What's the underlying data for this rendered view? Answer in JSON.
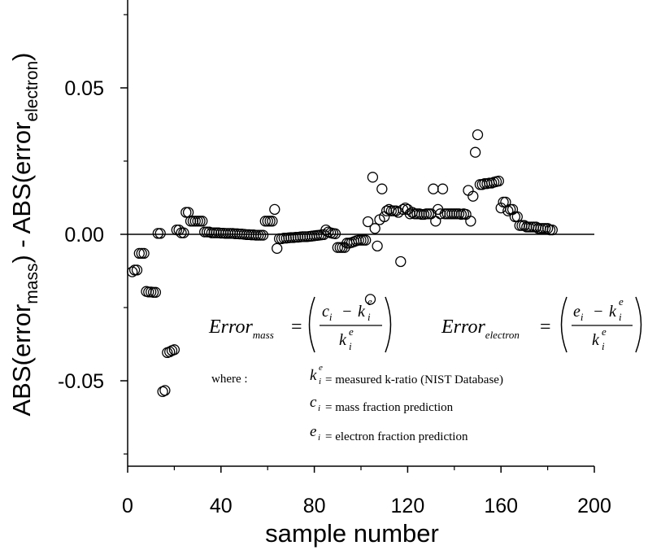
{
  "chart_data": {
    "type": "scatter",
    "xlabel": "sample number",
    "ylabel": {
      "prefix": "ABS(error",
      "sub1": "mass",
      "middle": ") - ABS(error",
      "sub2": "electron",
      "suffix": ")"
    },
    "xlim": [
      0,
      200
    ],
    "ylim": [
      -0.08,
      0.08
    ],
    "xticks": [
      0,
      40,
      80,
      120,
      160,
      200
    ],
    "xtick_labels": [
      "0",
      "40",
      "80",
      "120",
      "160",
      "200"
    ],
    "yticks": [
      -0.05,
      0.0,
      0.05
    ],
    "ytick_labels": [
      "-0.05",
      "0.00",
      "0.05"
    ],
    "zero_line": true,
    "marker": "open-circle",
    "series": [
      {
        "points": [
          [
            2,
            -0.0128
          ],
          [
            3,
            -0.0122
          ],
          [
            4,
            -0.0122
          ],
          [
            5,
            -0.0065
          ],
          [
            6,
            -0.0065
          ],
          [
            7,
            -0.0065
          ],
          [
            8,
            -0.0195
          ],
          [
            9,
            -0.0197
          ],
          [
            10,
            -0.0197
          ],
          [
            11,
            -0.0198
          ],
          [
            12,
            -0.0198
          ],
          [
            13,
            0.0003
          ],
          [
            14,
            0.0003
          ],
          [
            15,
            -0.0537
          ],
          [
            16,
            -0.0533
          ],
          [
            17,
            -0.0404
          ],
          [
            18,
            -0.0401
          ],
          [
            19,
            -0.0397
          ],
          [
            20,
            -0.0394
          ],
          [
            21,
            0.0015
          ],
          [
            22,
            0.0015
          ],
          [
            23,
            0.0005
          ],
          [
            24,
            0.0005
          ],
          [
            25,
            0.0075
          ],
          [
            26,
            0.0075
          ],
          [
            27,
            0.0045
          ],
          [
            28,
            0.0045
          ],
          [
            29,
            0.0045
          ],
          [
            30,
            0.0045
          ],
          [
            31,
            0.0045
          ],
          [
            32,
            0.0045
          ],
          [
            33,
            0.0008
          ],
          [
            34,
            0.0008
          ],
          [
            35,
            0.0008
          ],
          [
            36,
            0.0005
          ],
          [
            37,
            0.0005
          ],
          [
            38,
            0.0005
          ],
          [
            39,
            0.0005
          ],
          [
            40,
            0.0004
          ],
          [
            41,
            0.0004
          ],
          [
            42,
            0.0003
          ],
          [
            43,
            0.0003
          ],
          [
            44,
            0.0003
          ],
          [
            45,
            0.0003
          ],
          [
            46,
            0.0002
          ],
          [
            47,
            0.0002
          ],
          [
            48,
            0.0001
          ],
          [
            49,
            0.0001
          ],
          [
            50,
            0.0
          ],
          [
            51,
            -0.0001
          ],
          [
            52,
            -0.0001
          ],
          [
            53,
            -0.0002
          ],
          [
            54,
            -0.0002
          ],
          [
            55,
            -0.0003
          ],
          [
            56,
            -0.0003
          ],
          [
            57,
            -0.0003
          ],
          [
            58,
            -0.0003
          ],
          [
            59,
            0.0045
          ],
          [
            60,
            0.0045
          ],
          [
            61,
            0.0045
          ],
          [
            62,
            0.0045
          ],
          [
            63,
            0.0085
          ],
          [
            64,
            -0.0048
          ],
          [
            65,
            -0.0015
          ],
          [
            66,
            -0.0015
          ],
          [
            67,
            -0.0013
          ],
          [
            68,
            -0.0013
          ],
          [
            69,
            -0.0012
          ],
          [
            70,
            -0.0011
          ],
          [
            71,
            -0.0011
          ],
          [
            72,
            -0.001
          ],
          [
            73,
            -0.001
          ],
          [
            74,
            -0.0009
          ],
          [
            75,
            -0.0008
          ],
          [
            76,
            -0.0008
          ],
          [
            77,
            -0.0008
          ],
          [
            78,
            -0.0007
          ],
          [
            79,
            -0.0006
          ],
          [
            80,
            -0.0005
          ],
          [
            81,
            -0.0004
          ],
          [
            82,
            -0.0003
          ],
          [
            83,
            -0.0002
          ],
          [
            84,
            -0.0001
          ],
          [
            85,
            0.0015
          ],
          [
            86,
            0.0008
          ],
          [
            87,
            0.0005
          ],
          [
            88,
            0.0003
          ],
          [
            89,
            0.0002
          ],
          [
            90,
            -0.0045
          ],
          [
            91,
            -0.0045
          ],
          [
            92,
            -0.0045
          ],
          [
            93,
            -0.0045
          ],
          [
            94,
            -0.003
          ],
          [
            95,
            -0.003
          ],
          [
            96,
            -0.0028
          ],
          [
            97,
            -0.0025
          ],
          [
            98,
            -0.0022
          ],
          [
            99,
            -0.002
          ],
          [
            100,
            -0.002
          ],
          [
            101,
            -0.002
          ],
          [
            102,
            -0.002
          ],
          [
            103,
            0.0043
          ],
          [
            104,
            -0.0222
          ],
          [
            105,
            0.0195
          ],
          [
            106,
            0.002
          ],
          [
            107,
            -0.004
          ],
          [
            108,
            0.005
          ],
          [
            109,
            0.0155
          ],
          [
            110,
            0.006
          ],
          [
            111,
            0.008
          ],
          [
            112,
            0.0085
          ],
          [
            113,
            0.008
          ],
          [
            114,
            0.008
          ],
          [
            115,
            0.008
          ],
          [
            116,
            0.0075
          ],
          [
            117,
            -0.0093
          ],
          [
            118,
            0.0085
          ],
          [
            119,
            0.009
          ],
          [
            120,
            0.0085
          ],
          [
            121,
            0.007
          ],
          [
            122,
            0.0075
          ],
          [
            123,
            0.007
          ],
          [
            124,
            0.007
          ],
          [
            125,
            0.007
          ],
          [
            126,
            0.0068
          ],
          [
            127,
            0.0068
          ],
          [
            128,
            0.007
          ],
          [
            129,
            0.007
          ],
          [
            130,
            0.007
          ],
          [
            131,
            0.0155
          ],
          [
            132,
            0.0045
          ],
          [
            133,
            0.0085
          ],
          [
            134,
            0.007
          ],
          [
            135,
            0.0155
          ],
          [
            136,
            0.007
          ],
          [
            137,
            0.007
          ],
          [
            138,
            0.007
          ],
          [
            139,
            0.007
          ],
          [
            140,
            0.007
          ],
          [
            141,
            0.007
          ],
          [
            142,
            0.007
          ],
          [
            143,
            0.0068
          ],
          [
            144,
            0.007
          ],
          [
            145,
            0.0068
          ],
          [
            146,
            0.015
          ],
          [
            147,
            0.0045
          ],
          [
            148,
            0.013
          ],
          [
            149,
            0.028
          ],
          [
            150,
            0.034
          ],
          [
            151,
            0.017
          ],
          [
            152,
            0.017
          ],
          [
            153,
            0.0173
          ],
          [
            154,
            0.0173
          ],
          [
            155,
            0.0175
          ],
          [
            156,
            0.0175
          ],
          [
            157,
            0.0178
          ],
          [
            158,
            0.018
          ],
          [
            159,
            0.0182
          ],
          [
            160,
            0.009
          ],
          [
            161,
            0.011
          ],
          [
            162,
            0.011
          ],
          [
            163,
            0.008
          ],
          [
            164,
            0.0085
          ],
          [
            165,
            0.0085
          ],
          [
            166,
            0.006
          ],
          [
            167,
            0.006
          ],
          [
            168,
            0.003
          ],
          [
            169,
            0.003
          ],
          [
            170,
            0.003
          ],
          [
            171,
            0.0025
          ],
          [
            172,
            0.0025
          ],
          [
            173,
            0.0025
          ],
          [
            174,
            0.0025
          ],
          [
            175,
            0.0025
          ],
          [
            176,
            0.002
          ],
          [
            177,
            0.002
          ],
          [
            178,
            0.002
          ],
          [
            179,
            0.002
          ],
          [
            180,
            0.002
          ],
          [
            181,
            0.0015
          ],
          [
            182,
            0.0015
          ]
        ]
      }
    ],
    "annotations": {
      "eq_mass": {
        "lhs": "Error",
        "lhs_sub": "mass",
        "equals": "=",
        "num_a": "c",
        "num_a_sub": "i",
        "minus": "−",
        "num_b": "k",
        "num_b_sub": "i",
        "num_b_sup": "e",
        "den": "k",
        "den_sub": "i",
        "den_sup": "e"
      },
      "eq_electron": {
        "lhs": "Error",
        "lhs_sub": "electron",
        "equals": "=",
        "num_a": "e",
        "num_a_sub": "i",
        "minus": "−",
        "num_b": "k",
        "num_b_sub": "i",
        "num_b_sup": "e",
        "den": "k",
        "den_sub": "i",
        "den_sup": "e"
      },
      "where_label": "where :",
      "definitions": [
        {
          "var": "k",
          "sub": "i",
          "sup": "e",
          "text": "= measured k-ratio (NIST Database)"
        },
        {
          "var": "c",
          "sub": "i",
          "sup": "",
          "text": "= mass fraction prediction"
        },
        {
          "var": "e",
          "sub": "i",
          "sup": "",
          "text": "= electron fraction prediction"
        }
      ]
    }
  }
}
